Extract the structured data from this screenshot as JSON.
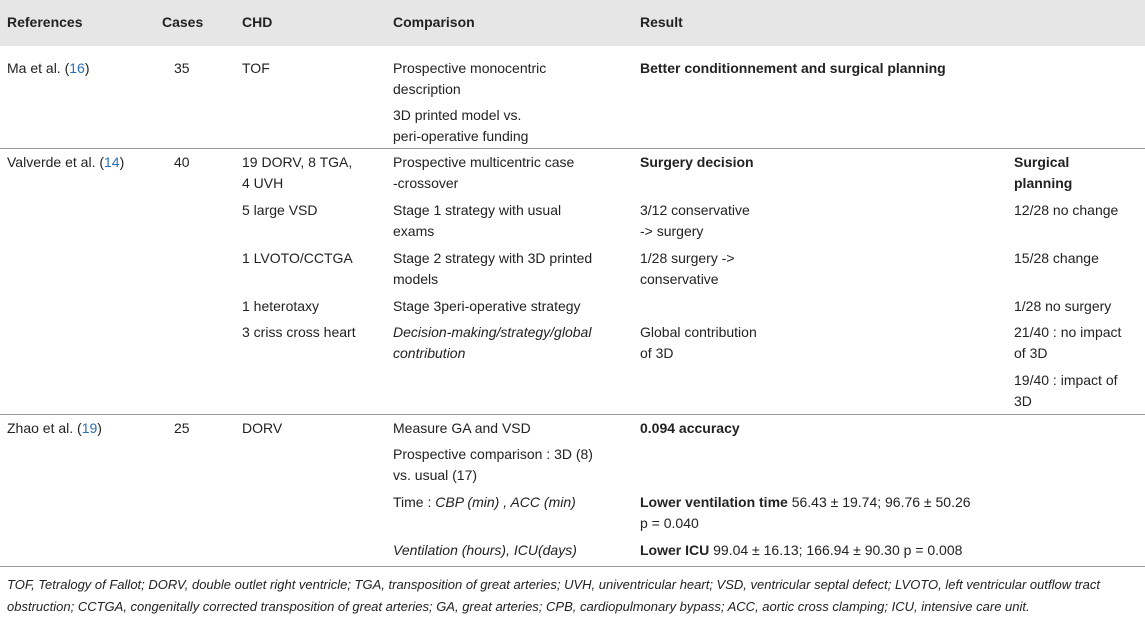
{
  "headers": {
    "references": "References",
    "cases": "Cases",
    "chd": "CHD",
    "comparison": "Comparison",
    "result": "Result"
  },
  "rows": {
    "ma": {
      "ref_name": "Ma et al. (",
      "ref_num": "16",
      "ref_close": ")",
      "cases": "35",
      "chd": "TOF",
      "comp1_l1": "Prospective monocentric",
      "comp1_l2": "description",
      "comp2_l1": "3D printed model vs.",
      "comp2_l2": "peri-operative funding",
      "result": "Better conditionnement and surgical planning"
    },
    "valverde": {
      "ref_name": "Valverde et al. (",
      "ref_num": "14",
      "ref_close": ")",
      "cases": "40",
      "chd1_l1": "19 DORV, 8 TGA,",
      "chd1_l2": "4 UVH",
      "chd2": "5 large VSD",
      "chd3": "1 LVOTO/CCTGA",
      "chd4": "1 heterotaxy",
      "chd5": "3 criss cross heart",
      "comp1_l1": "Prospective multicentric case",
      "comp1_l2": "-crossover",
      "comp2_l1": "Stage 1 strategy with usual",
      "comp2_l2": "exams",
      "comp3_l1": "Stage 2 strategy with 3D printed",
      "comp3_l2": "models",
      "comp4": "Stage 3peri-operative strategy",
      "comp5_l1": "Decision-making/strategy/global",
      "comp5_l2": "contribution",
      "res_head": "Surgery decision",
      "res1_l1": "3/12 conservative",
      "res1_l2": "-> surgery",
      "res2_l1": "1/28 surgery ->",
      "res2_l2": "conservative",
      "res3_l1": "Global contribution",
      "res3_l2": "of 3D",
      "side_head_l1": "Surgical",
      "side_head_l2": "planning",
      "side1": "12/28 no change",
      "side2": "15/28 change",
      "side3": "1/28 no surgery",
      "side4_l1": "21/40 : no impact",
      "side4_l2": "of 3D",
      "side5_l1": "19/40 : impact of",
      "side5_l2": "3D"
    },
    "zhao": {
      "ref_name": "Zhao et al. (",
      "ref_num": "19",
      "ref_close": ")",
      "cases": "25",
      "chd": "DORV",
      "comp1": "Measure GA and VSD",
      "comp2_l1": "Prospective comparison : 3D (8)",
      "comp2_l2": "vs. usual (17)",
      "comp3_pre": "Time : ",
      "comp3_it": "CBP (min) , ACC (min)",
      "comp4": "Ventilation (hours), ICU(days)",
      "res1": "0.094 accuracy",
      "res2_bold": "Lower ventilation time",
      "res2_rest": " 56.43 ± 19.74; 96.76 ± 50.26",
      "res2_l2": "p = 0.040",
      "res3_bold": "Lower ICU",
      "res3_rest": " 99.04 ± 16.13; 166.94 ± 90.30 p = 0.008"
    }
  },
  "footnote": "TOF, Tetralogy of Fallot; DORV, double outlet right ventricle; TGA, transposition of great arteries; UVH, univentricular heart; VSD, ventricular septal defect; LVOTO, left ventricular outflow tract obstruction; CCTGA, congenitally corrected transposition of great arteries; GA, great arteries; CPB, cardiopulmonary bypass; ACC, aortic cross clamping; ICU, intensive care unit.",
  "colors": {
    "header_bg": "#e6e6e6",
    "link": "#2c6eb5",
    "separator": "#9a9a9a"
  }
}
